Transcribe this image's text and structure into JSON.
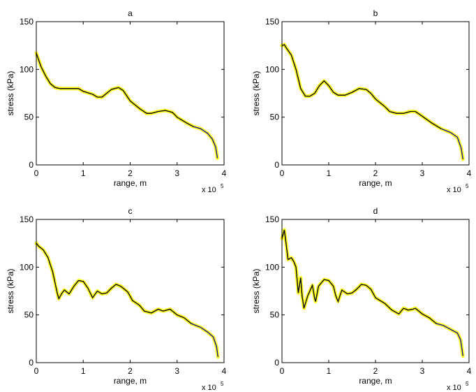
{
  "chart_data": [
    {
      "type": "line",
      "title": "a",
      "xlabel": "range, m",
      "ylabel": "stress (kPa)",
      "x_multiplier_label": "x 10",
      "x_multiplier_exponent": "5",
      "xlim": [
        0,
        4
      ],
      "ylim": [
        0,
        150
      ],
      "xticks": [
        "0",
        "1",
        "2",
        "3",
        "4"
      ],
      "yticks": [
        "0",
        "50",
        "100",
        "150"
      ],
      "grid": false,
      "series": [
        {
          "name": "stress",
          "color": "#000000",
          "band_color": "#ffff00",
          "tail_color": "#0000aa",
          "x": [
            0,
            0.1,
            0.2,
            0.3,
            0.4,
            0.5,
            0.7,
            0.9,
            1.0,
            1.2,
            1.3,
            1.4,
            1.5,
            1.6,
            1.75,
            1.85,
            2.0,
            2.2,
            2.35,
            2.45,
            2.6,
            2.75,
            2.9,
            3.0,
            3.2,
            3.35,
            3.5,
            3.65,
            3.75,
            3.82,
            3.86
          ],
          "y": [
            117,
            103,
            93,
            85,
            81,
            80,
            80,
            80,
            77,
            74,
            71,
            71,
            75,
            79,
            81,
            78,
            67,
            59,
            54,
            54,
            56,
            57,
            55,
            50,
            44,
            40,
            38,
            33,
            27,
            19,
            7
          ]
        }
      ]
    },
    {
      "type": "line",
      "title": "b",
      "xlabel": "range, m",
      "ylabel": "stress (kPa)",
      "x_multiplier_label": "x 10",
      "x_multiplier_exponent": "5",
      "xlim": [
        0,
        4
      ],
      "ylim": [
        0,
        150
      ],
      "xticks": [
        "0",
        "1",
        "2",
        "3",
        "4"
      ],
      "yticks": [
        "0",
        "50",
        "100",
        "150"
      ],
      "grid": false,
      "series": [
        {
          "name": "stress",
          "color": "#000000",
          "band_color": "#ffff00",
          "tail_color": "#0000aa",
          "x": [
            0,
            0.05,
            0.1,
            0.2,
            0.3,
            0.4,
            0.5,
            0.6,
            0.7,
            0.8,
            0.9,
            1.0,
            1.1,
            1.2,
            1.35,
            1.5,
            1.65,
            1.8,
            1.9,
            2.0,
            2.2,
            2.3,
            2.45,
            2.6,
            2.75,
            2.85,
            3.0,
            3.2,
            3.4,
            3.6,
            3.75,
            3.83,
            3.87
          ],
          "y": [
            125,
            126,
            122,
            115,
            100,
            80,
            72,
            72,
            75,
            83,
            88,
            83,
            76,
            73,
            73,
            76,
            80,
            79,
            75,
            69,
            61,
            56,
            54,
            54,
            56,
            56,
            51,
            44,
            38,
            34,
            29,
            18,
            6
          ]
        }
      ]
    },
    {
      "type": "line",
      "title": "c",
      "xlabel": "range, m",
      "ylabel": "stress (kPa)",
      "x_multiplier_label": "x 10",
      "x_multiplier_exponent": "5",
      "xlim": [
        0,
        4
      ],
      "ylim": [
        0,
        150
      ],
      "xticks": [
        "0",
        "1",
        "2",
        "3",
        "4"
      ],
      "yticks": [
        "0",
        "50",
        "100",
        "150"
      ],
      "grid": false,
      "series": [
        {
          "name": "stress",
          "color": "#000000",
          "band_color": "#ffff00",
          "tail_color": "#0000aa",
          "x": [
            0,
            0.05,
            0.15,
            0.25,
            0.35,
            0.45,
            0.48,
            0.55,
            0.6,
            0.7,
            0.8,
            0.9,
            1.0,
            1.1,
            1.2,
            1.3,
            1.4,
            1.5,
            1.6,
            1.7,
            1.8,
            1.95,
            2.05,
            2.2,
            2.3,
            2.45,
            2.6,
            2.7,
            2.85,
            3.0,
            3.15,
            3.3,
            3.5,
            3.65,
            3.77,
            3.84,
            3.87
          ],
          "y": [
            125,
            122,
            118,
            110,
            95,
            72,
            67,
            73,
            76,
            72,
            80,
            86,
            85,
            78,
            68,
            75,
            72,
            73,
            78,
            82,
            80,
            74,
            65,
            60,
            54,
            52,
            56,
            54,
            56,
            50,
            47,
            41,
            37,
            32,
            27,
            17,
            6
          ]
        }
      ]
    },
    {
      "type": "line",
      "title": "d",
      "xlabel": "range, m",
      "ylabel": "stress (kPa)",
      "x_multiplier_label": "x 10",
      "x_multiplier_exponent": "5",
      "xlim": [
        0,
        4
      ],
      "ylim": [
        0,
        150
      ],
      "xticks": [
        "0",
        "1",
        "2",
        "3",
        "4"
      ],
      "yticks": [
        "0",
        "50",
        "100",
        "150"
      ],
      "grid": false,
      "series": [
        {
          "name": "stress",
          "color": "#000000",
          "band_color": "#ffff00",
          "tail_color": "#0000aa",
          "x": [
            0,
            0.03,
            0.05,
            0.1,
            0.13,
            0.2,
            0.25,
            0.3,
            0.35,
            0.4,
            0.43,
            0.47,
            0.55,
            0.65,
            0.7,
            0.72,
            0.78,
            0.9,
            1.0,
            1.1,
            1.15,
            1.2,
            1.28,
            1.4,
            1.5,
            1.6,
            1.7,
            1.8,
            1.9,
            2.0,
            2.2,
            2.35,
            2.5,
            2.6,
            2.7,
            2.8,
            2.85,
            3.0,
            3.15,
            3.3,
            3.45,
            3.6,
            3.75,
            3.82,
            3.87
          ],
          "y": [
            130,
            135,
            139,
            120,
            108,
            110,
            106,
            100,
            73,
            89,
            70,
            57,
            70,
            81,
            67,
            64,
            80,
            87,
            86,
            80,
            70,
            64,
            76,
            72,
            73,
            77,
            82,
            81,
            77,
            68,
            62,
            55,
            51,
            57,
            55,
            56,
            57,
            51,
            47,
            41,
            39,
            35,
            31,
            24,
            7
          ]
        }
      ]
    }
  ]
}
